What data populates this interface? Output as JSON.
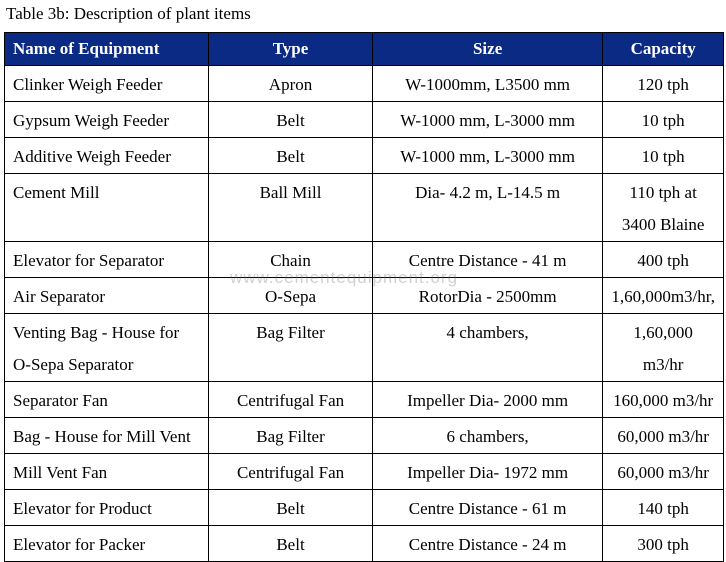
{
  "caption": "Table 3b: Description of plant items",
  "watermark": "www.cementequipment.org",
  "headers": [
    "Name of Equipment",
    "Type",
    "Size",
    "Capacity"
  ],
  "rows": [
    {
      "name": "Clinker Weigh Feeder",
      "type": "Apron",
      "size": "W-1000mm, L3500 mm",
      "capacity": "120 tph"
    },
    {
      "name": "Gypsum Weigh Feeder",
      "type": "Belt",
      "size": "W-1000 mm, L-3000 mm",
      "capacity": "10 tph"
    },
    {
      "name": "Additive Weigh Feeder",
      "type": "Belt",
      "size": "W-1000 mm, L-3000 mm",
      "capacity": "10 tph"
    },
    {
      "name": "Cement Mill",
      "type": "Ball Mill",
      "size": "Dia- 4.2 m, L-14.5 m",
      "capacity": "110 tph at 3400 Blaine"
    },
    {
      "name": "Elevator for Separator",
      "type": "Chain",
      "size": "Centre Distance - 41 m",
      "capacity": "400 tph"
    },
    {
      "name": "Air Separator",
      "type": "O-Sepa",
      "size": "RotorDia - 2500mm",
      "capacity": "1,60,000m3/hr,"
    },
    {
      "name": "Venting Bag - House for O-Sepa  Separator",
      "type": "Bag Filter",
      "size": "4 chambers,",
      "capacity": "1,60,000 m3/hr"
    },
    {
      "name": "Separator Fan",
      "type": "Centrifugal Fan",
      "size": "Impeller Dia- 2000 mm",
      "capacity": "160,000 m3/hr"
    },
    {
      "name": "Bag - House for Mill Vent",
      "type": "Bag Filter",
      "size": "6 chambers,",
      "capacity": "60,000 m3/hr"
    },
    {
      "name": "Mill Vent Fan",
      "type": "Centrifugal Fan",
      "size": "Impeller Dia- 1972 mm",
      "capacity": "60,000 m3/hr"
    },
    {
      "name": "Elevator for Product",
      "type": "Belt",
      "size": "Centre Distance - 61 m",
      "capacity": "140 tph"
    },
    {
      "name": "Elevator for Packer",
      "type": "Belt",
      "size": "Centre Distance - 24 m",
      "capacity": "300 tph"
    }
  ]
}
